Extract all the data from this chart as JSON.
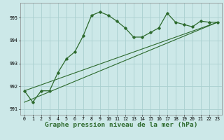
{
  "xlabel": "Graphe pression niveau de la mer (hPa)",
  "bg_color": "#cce8e8",
  "grid_color": "#aad0d0",
  "line_color": "#2d6a2d",
  "ylim": [
    990.75,
    995.65
  ],
  "yticks": [
    991,
    992,
    993,
    994,
    995
  ],
  "xlim": [
    -0.5,
    23.5
  ],
  "xticks": [
    0,
    1,
    2,
    3,
    4,
    5,
    6,
    7,
    8,
    9,
    10,
    11,
    12,
    13,
    14,
    15,
    16,
    17,
    18,
    19,
    20,
    21,
    22,
    23
  ],
  "line1_x": [
    0,
    1,
    2,
    3,
    4,
    5,
    6,
    7,
    8,
    9,
    10,
    11,
    12,
    13,
    14,
    15,
    16,
    17,
    18,
    19,
    20,
    21,
    22,
    23
  ],
  "line1_y": [
    991.8,
    991.3,
    991.8,
    991.8,
    992.6,
    993.2,
    993.5,
    994.2,
    995.1,
    995.25,
    995.1,
    994.85,
    994.55,
    994.15,
    994.15,
    994.35,
    994.55,
    995.2,
    994.8,
    994.7,
    994.6,
    994.85,
    994.8,
    994.8
  ],
  "line2_x": [
    0,
    23
  ],
  "line2_y": [
    991.8,
    994.8
  ],
  "line3_x": [
    0,
    23
  ],
  "line3_y": [
    991.3,
    994.8
  ],
  "tick_fontsize": 4.8,
  "label_fontsize": 6.8
}
